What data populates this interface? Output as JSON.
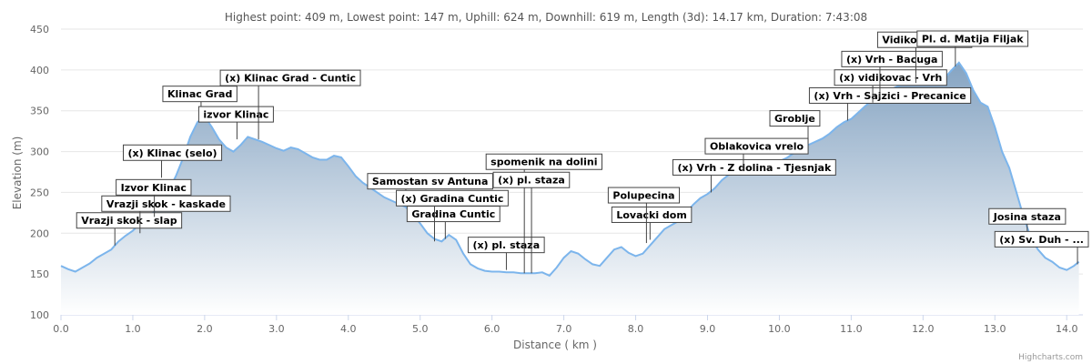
{
  "chart_data": {
    "type": "area",
    "title": "Highest point: 409 m, Lowest point: 147 m, Uphill: 624 m, Downhill: 619 m, Length (3d): 14.17 km, Duration: 7:43:08",
    "xlabel": "Distance ( km )",
    "ylabel": "Elevation (m)",
    "xlim": [
      0,
      14.2
    ],
    "ylim": [
      100,
      450
    ],
    "x_ticks": [
      "0.0",
      "1.0",
      "2.0",
      "3.0",
      "4.0",
      "5.0",
      "6.0",
      "7.0",
      "8.0",
      "9.0",
      "10.0",
      "11.0",
      "12.0",
      "13.0",
      "14.0"
    ],
    "y_ticks": [
      "100",
      "150",
      "200",
      "250",
      "300",
      "350",
      "400",
      "450"
    ],
    "grid": true,
    "colors": {
      "line": "#7cb5ec",
      "area_top": "#8fa9c4",
      "area_bottom": "#ffffff",
      "grid": "#e6e6e6"
    },
    "series": [
      {
        "points": [
          [
            0.0,
            160
          ],
          [
            0.1,
            156
          ],
          [
            0.2,
            153
          ],
          [
            0.3,
            158
          ],
          [
            0.4,
            163
          ],
          [
            0.5,
            170
          ],
          [
            0.6,
            175
          ],
          [
            0.7,
            180
          ],
          [
            0.8,
            190
          ],
          [
            0.9,
            197
          ],
          [
            1.0,
            203
          ],
          [
            1.1,
            212
          ],
          [
            1.2,
            220
          ],
          [
            1.3,
            226
          ],
          [
            1.4,
            235
          ],
          [
            1.5,
            252
          ],
          [
            1.6,
            270
          ],
          [
            1.7,
            292
          ],
          [
            1.8,
            318
          ],
          [
            1.9,
            336
          ],
          [
            2.0,
            343
          ],
          [
            2.1,
            330
          ],
          [
            2.2,
            315
          ],
          [
            2.3,
            305
          ],
          [
            2.4,
            300
          ],
          [
            2.5,
            308
          ],
          [
            2.6,
            318
          ],
          [
            2.7,
            315
          ],
          [
            2.8,
            312
          ],
          [
            2.9,
            308
          ],
          [
            3.0,
            304
          ],
          [
            3.1,
            301
          ],
          [
            3.2,
            305
          ],
          [
            3.3,
            303
          ],
          [
            3.4,
            298
          ],
          [
            3.5,
            293
          ],
          [
            3.6,
            290
          ],
          [
            3.7,
            290
          ],
          [
            3.8,
            295
          ],
          [
            3.9,
            293
          ],
          [
            4.0,
            282
          ],
          [
            4.1,
            270
          ],
          [
            4.2,
            262
          ],
          [
            4.3,
            256
          ],
          [
            4.4,
            250
          ],
          [
            4.5,
            244
          ],
          [
            4.6,
            240
          ],
          [
            4.7,
            236
          ],
          [
            4.8,
            232
          ],
          [
            4.9,
            222
          ],
          [
            5.0,
            212
          ],
          [
            5.1,
            200
          ],
          [
            5.2,
            193
          ],
          [
            5.3,
            190
          ],
          [
            5.4,
            198
          ],
          [
            5.5,
            192
          ],
          [
            5.6,
            175
          ],
          [
            5.7,
            162
          ],
          [
            5.8,
            157
          ],
          [
            5.9,
            154
          ],
          [
            6.0,
            153
          ],
          [
            6.1,
            153
          ],
          [
            6.2,
            152
          ],
          [
            6.3,
            152
          ],
          [
            6.4,
            151
          ],
          [
            6.5,
            151
          ],
          [
            6.6,
            151
          ],
          [
            6.7,
            152
          ],
          [
            6.8,
            148
          ],
          [
            6.9,
            158
          ],
          [
            7.0,
            170
          ],
          [
            7.1,
            178
          ],
          [
            7.2,
            175
          ],
          [
            7.3,
            168
          ],
          [
            7.4,
            162
          ],
          [
            7.5,
            160
          ],
          [
            7.6,
            170
          ],
          [
            7.7,
            180
          ],
          [
            7.8,
            183
          ],
          [
            7.9,
            176
          ],
          [
            8.0,
            172
          ],
          [
            8.1,
            175
          ],
          [
            8.2,
            185
          ],
          [
            8.3,
            195
          ],
          [
            8.4,
            205
          ],
          [
            8.5,
            210
          ],
          [
            8.6,
            215
          ],
          [
            8.7,
            225
          ],
          [
            8.8,
            235
          ],
          [
            8.9,
            243
          ],
          [
            9.0,
            248
          ],
          [
            9.1,
            255
          ],
          [
            9.2,
            265
          ],
          [
            9.3,
            272
          ],
          [
            9.4,
            278
          ],
          [
            9.5,
            275
          ],
          [
            9.6,
            280
          ],
          [
            9.7,
            278
          ],
          [
            9.8,
            282
          ],
          [
            9.9,
            284
          ],
          [
            10.0,
            288
          ],
          [
            10.1,
            292
          ],
          [
            10.2,
            298
          ],
          [
            10.3,
            303
          ],
          [
            10.4,
            308
          ],
          [
            10.5,
            312
          ],
          [
            10.6,
            316
          ],
          [
            10.7,
            322
          ],
          [
            10.8,
            330
          ],
          [
            10.9,
            336
          ],
          [
            11.0,
            340
          ],
          [
            11.1,
            348
          ],
          [
            11.2,
            356
          ],
          [
            11.3,
            364
          ],
          [
            11.4,
            370
          ],
          [
            11.5,
            375
          ],
          [
            11.6,
            378
          ],
          [
            11.7,
            382
          ],
          [
            11.8,
            384
          ],
          [
            11.9,
            386
          ],
          [
            12.0,
            384
          ],
          [
            12.1,
            382
          ],
          [
            12.2,
            383
          ],
          [
            12.3,
            390
          ],
          [
            12.4,
            400
          ],
          [
            12.5,
            409
          ],
          [
            12.6,
            396
          ],
          [
            12.7,
            375
          ],
          [
            12.8,
            360
          ],
          [
            12.9,
            355
          ],
          [
            13.0,
            330
          ],
          [
            13.1,
            300
          ],
          [
            13.2,
            280
          ],
          [
            13.3,
            250
          ],
          [
            13.4,
            220
          ],
          [
            13.5,
            195
          ],
          [
            13.6,
            180
          ],
          [
            13.7,
            170
          ],
          [
            13.8,
            165
          ],
          [
            13.9,
            158
          ],
          [
            14.0,
            155
          ],
          [
            14.1,
            160
          ],
          [
            14.17,
            165
          ]
        ]
      }
    ],
    "annotations": [
      {
        "label": "Vrazji skok - slap",
        "x": 0.75,
        "y": 185
      },
      {
        "label": "Vrazji skok - kaskade",
        "x": 1.1,
        "y": 200
      },
      {
        "label": "Izvor Klinac",
        "x": 1.3,
        "y": 220
      },
      {
        "label": "(x) Klinac (selo)",
        "x": 1.4,
        "y": 268
      },
      {
        "label": "Klinac Grad",
        "x": 1.95,
        "y": 340
      },
      {
        "label": "izvor Klinac",
        "x": 2.45,
        "y": 315
      },
      {
        "label": "(x) Klinac Grad - Cuntic",
        "x": 2.75,
        "y": 315
      },
      {
        "label": "Samostan sv Antuna",
        "x": 4.8,
        "y": 233
      },
      {
        "label": "Gradina Cuntic",
        "x": 5.35,
        "y": 193
      },
      {
        "label": "(x) Gradina Cuntic",
        "x": 5.2,
        "y": 190
      },
      {
        "label": "(x) pl. staza",
        "x": 6.2,
        "y": 155
      },
      {
        "label": "spomenik na dolini",
        "x": 6.45,
        "y": 151
      },
      {
        "label": "(x) pl. staza",
        "x": 6.55,
        "y": 151
      },
      {
        "label": "Lovacki dom",
        "x": 8.2,
        "y": 192
      },
      {
        "label": "Polupecina",
        "x": 8.15,
        "y": 188
      },
      {
        "label": "(x) Vrh - Z dolina - Tjesnjak",
        "x": 9.05,
        "y": 250
      },
      {
        "label": "Oblakovica vrelo",
        "x": 9.5,
        "y": 276
      },
      {
        "label": "Groblje",
        "x": 10.4,
        "y": 310
      },
      {
        "label": "(x) Vrh - Sajzici - Precanice",
        "x": 10.95,
        "y": 338
      },
      {
        "label": "(x) vidikovac - Vrh",
        "x": 11.3,
        "y": 360
      },
      {
        "label": "(x) Vrh - Bacuga",
        "x": 11.4,
        "y": 366
      },
      {
        "label": "Vidikovac - Vrh",
        "x": 11.9,
        "y": 384
      },
      {
        "label": "Pl. d. Matija Filjak",
        "x": 12.45,
        "y": 404
      },
      {
        "label": "Josina staza",
        "x": 13.45,
        "y": 190
      },
      {
        "label": "(x) Sv. Duh - ...",
        "x": 14.15,
        "y": 162
      }
    ],
    "credits": "Highcharts.com"
  }
}
